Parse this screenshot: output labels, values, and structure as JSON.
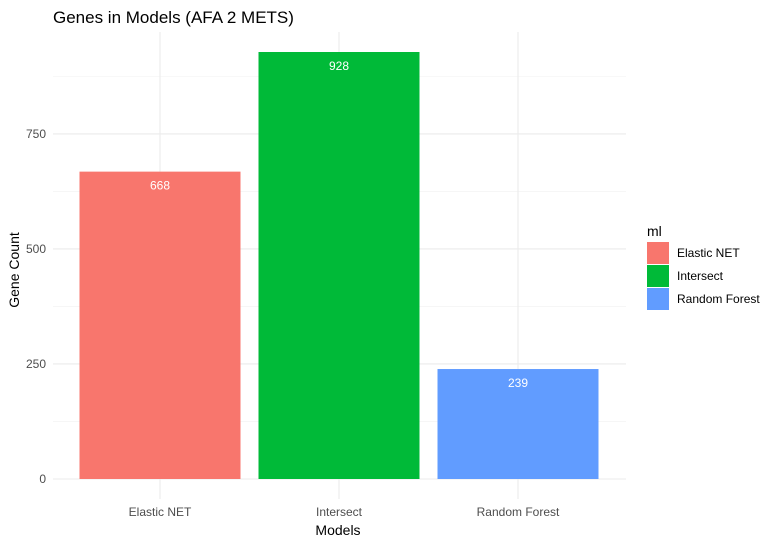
{
  "chart_data": {
    "type": "bar",
    "title": "Genes in Models (AFA 2 METS)",
    "xlabel": "Models",
    "ylabel": "Gene Count",
    "categories": [
      "Elastic NET",
      "Intersect",
      "Random Forest"
    ],
    "values": [
      668,
      928,
      239
    ],
    "colors": [
      "#F8766D",
      "#00BA38",
      "#619CFF"
    ],
    "ylim": [
      0,
      975
    ],
    "yticks": [
      0,
      250,
      500,
      750
    ],
    "grid": true,
    "legend": {
      "title": "ml",
      "placement": "right",
      "entries": [
        "Elastic NET",
        "Intersect",
        "Random Forest"
      ]
    }
  }
}
